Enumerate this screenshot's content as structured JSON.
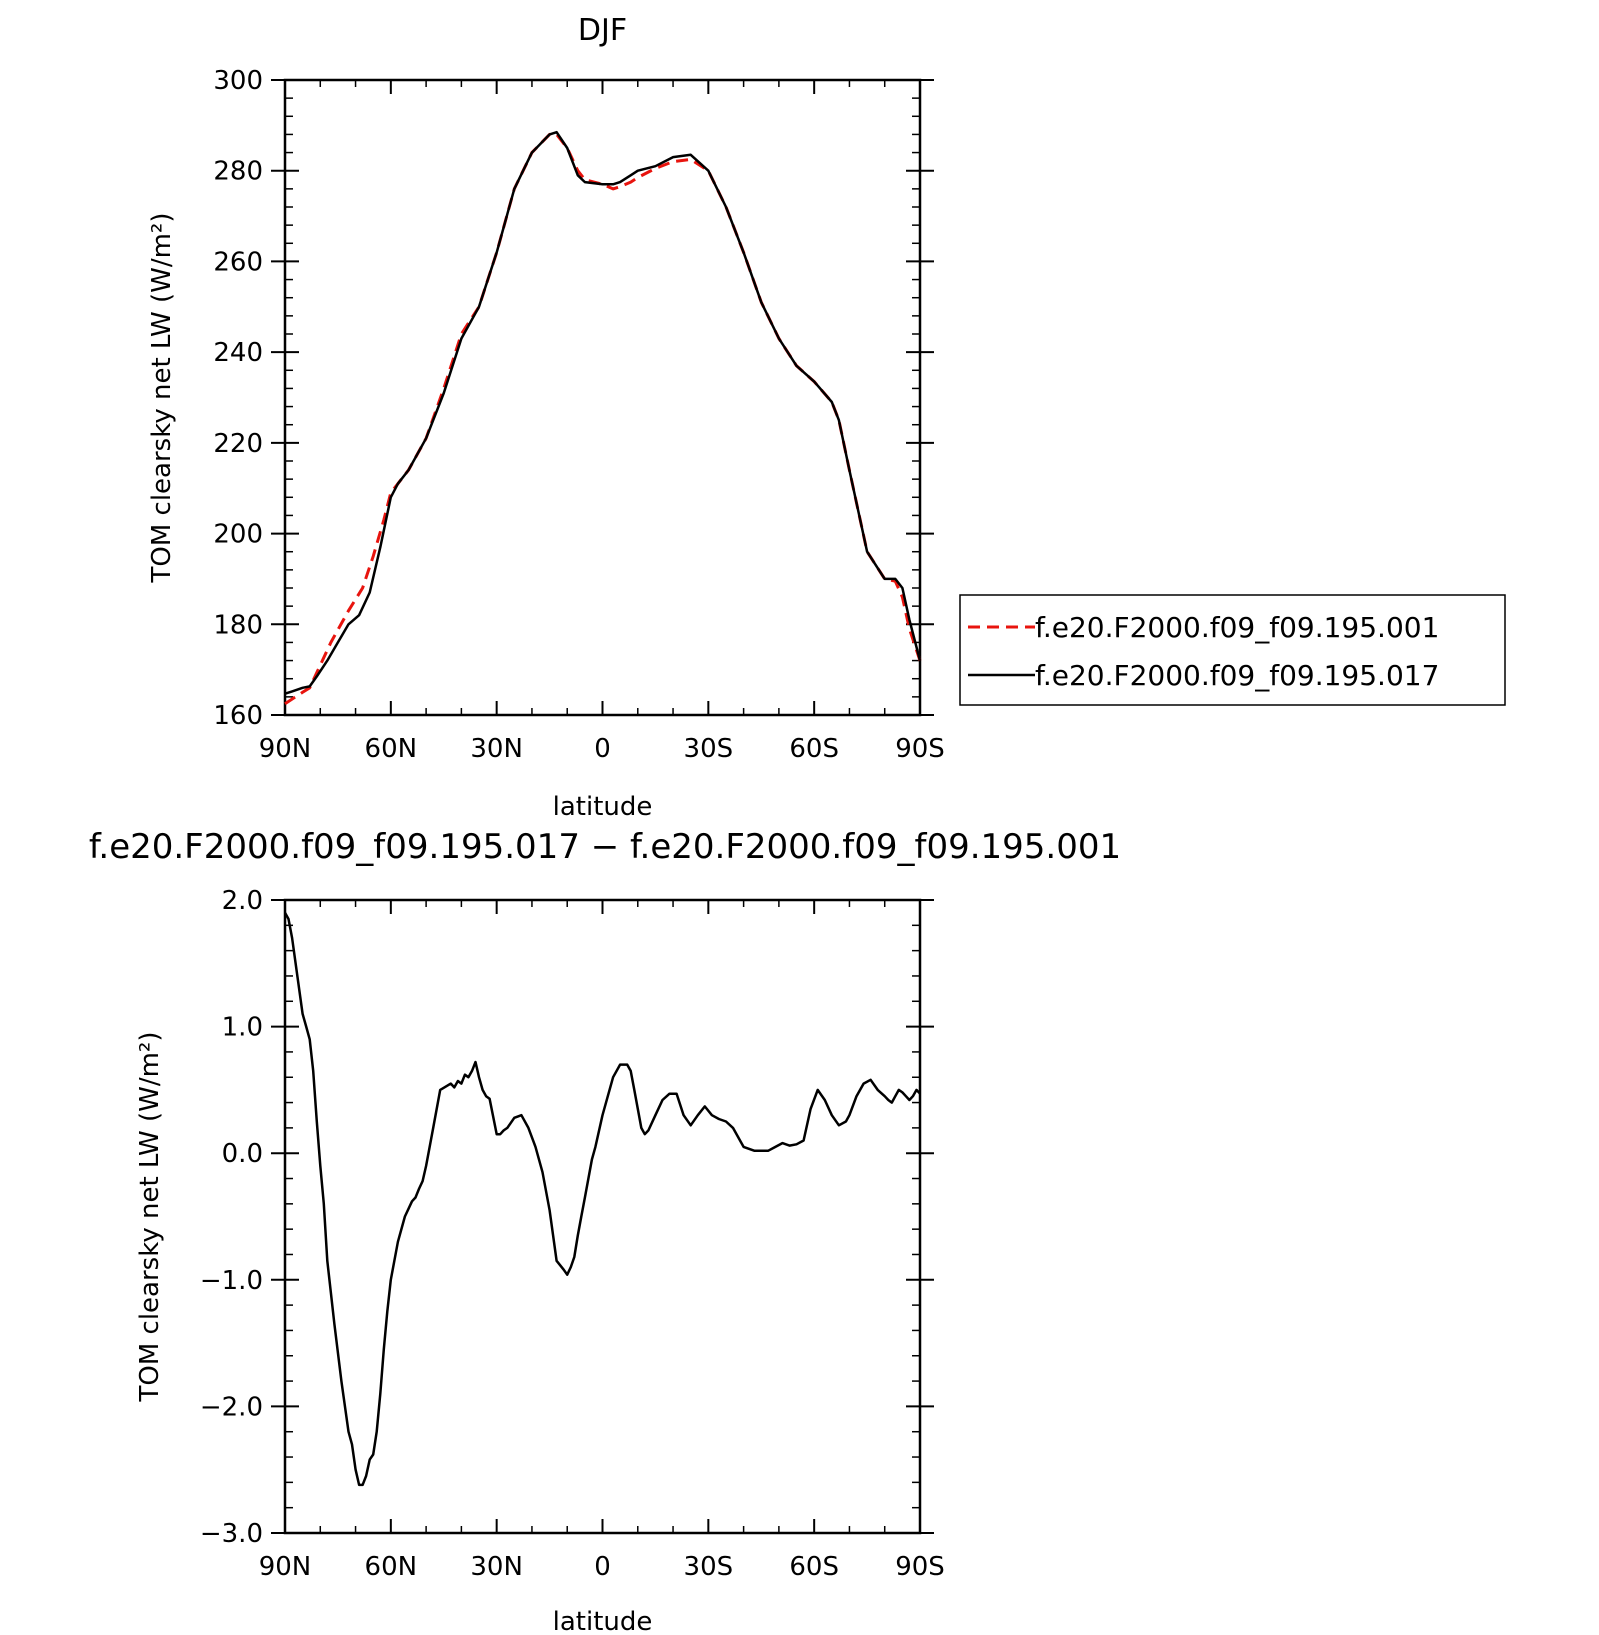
{
  "chart_data": [
    {
      "type": "line",
      "title": "DJF",
      "xlabel": "latitude",
      "ylabel": "TOM clearsky net LW (W/m²)",
      "ylim": [
        160,
        300
      ],
      "xlim": [
        -90,
        90
      ],
      "x_ticks": [
        {
          "value": -90,
          "label": "90N"
        },
        {
          "value": -60,
          "label": "60N"
        },
        {
          "value": -30,
          "label": "30N"
        },
        {
          "value": 0,
          "label": "0"
        },
        {
          "value": 30,
          "label": "30S"
        },
        {
          "value": 60,
          "label": "60S"
        },
        {
          "value": 90,
          "label": "90S"
        }
      ],
      "y_ticks": [
        {
          "value": 160,
          "label": "160"
        },
        {
          "value": 180,
          "label": "180"
        },
        {
          "value": 200,
          "label": "200"
        },
        {
          "value": 220,
          "label": "220"
        },
        {
          "value": 240,
          "label": "240"
        },
        {
          "value": 260,
          "label": "260"
        },
        {
          "value": 280,
          "label": "280"
        },
        {
          "value": 300,
          "label": "300"
        }
      ],
      "legend_position": "right",
      "series": [
        {
          "name": "f.e20.F2000.f09_f09.195.001",
          "color": "#e8140e",
          "style": "dashed",
          "x": [
            -90,
            -85,
            -83,
            -80,
            -77,
            -72,
            -68,
            -65,
            -62,
            -60,
            -58,
            -55,
            -50,
            -45,
            -40,
            -35,
            -30,
            -25,
            -20,
            -15,
            -13,
            -10,
            -7,
            -5,
            0,
            3,
            5,
            8,
            10,
            15,
            20,
            25,
            30,
            35,
            40,
            45,
            50,
            55,
            60,
            65,
            67,
            70,
            75,
            80,
            83,
            85,
            87,
            90
          ],
          "y": [
            162.5,
            165,
            166,
            171,
            176,
            183,
            188,
            195,
            203,
            209,
            211,
            214,
            221,
            232,
            244,
            250,
            262,
            276,
            284,
            288,
            288,
            285,
            280,
            278,
            277,
            276,
            276.5,
            277.5,
            278.5,
            280.5,
            282,
            282.5,
            280,
            272,
            262,
            251,
            243,
            237,
            233.5,
            229,
            225,
            214,
            196,
            190,
            189.5,
            186,
            179,
            172
          ]
        },
        {
          "name": "f.e20.F2000.f09_f09.195.017",
          "color": "#000000",
          "style": "solid",
          "x": [
            -90,
            -88,
            -85,
            -83,
            -81,
            -78,
            -75,
            -72,
            -69,
            -66,
            -63,
            -60,
            -58,
            -55,
            -50,
            -45,
            -40,
            -35,
            -30,
            -25,
            -20,
            -15,
            -13,
            -10,
            -7,
            -5,
            0,
            3,
            5,
            8,
            10,
            15,
            20,
            25,
            30,
            35,
            40,
            45,
            50,
            55,
            60,
            65,
            67,
            70,
            75,
            80,
            83,
            85,
            87,
            90
          ],
          "y": [
            164.7,
            165.2,
            166,
            166.3,
            168.5,
            172,
            176,
            180,
            182,
            187,
            197,
            208,
            211,
            214,
            221,
            231,
            243,
            250,
            262,
            276,
            284,
            288,
            288.5,
            285,
            279,
            277.5,
            277,
            277,
            277.5,
            279,
            280,
            281,
            283,
            283.5,
            280,
            272,
            262,
            251,
            243,
            237,
            233.5,
            229,
            225,
            214,
            196,
            190,
            190,
            188,
            181,
            172
          ]
        }
      ]
    },
    {
      "type": "line",
      "title": "f.e20.F2000.f09_f09.195.017 − f.e20.F2000.f09_f09.195.001",
      "xlabel": "latitude",
      "ylabel": "TOM clearsky net LW (W/m²)",
      "ylim": [
        -3.0,
        2.0
      ],
      "xlim": [
        -90,
        90
      ],
      "x_ticks": [
        {
          "value": -90,
          "label": "90N"
        },
        {
          "value": -60,
          "label": "60N"
        },
        {
          "value": -30,
          "label": "30N"
        },
        {
          "value": 0,
          "label": "0"
        },
        {
          "value": 30,
          "label": "30S"
        },
        {
          "value": 60,
          "label": "60S"
        },
        {
          "value": 90,
          "label": "90S"
        }
      ],
      "y_ticks": [
        {
          "value": 2.0,
          "label": "2.0"
        },
        {
          "value": 1.0,
          "label": "1.0"
        },
        {
          "value": 0.0,
          "label": "0.0"
        },
        {
          "value": -1.0,
          "label": "−1.0"
        },
        {
          "value": -2.0,
          "label": "−2.0"
        },
        {
          "value": -3.0,
          "label": "−3.0"
        }
      ],
      "series": [
        {
          "name": "",
          "color": "#000000",
          "style": "solid",
          "x": [
            -90,
            -89,
            -88,
            -87,
            -85,
            -84,
            -83,
            -82,
            -81,
            -80,
            -79,
            -78,
            -76,
            -74,
            -72,
            -71,
            -70,
            -69,
            -68,
            -67,
            -66,
            -65,
            -64,
            -63,
            -62,
            -61,
            -60,
            -58,
            -56,
            -54,
            -53,
            -52,
            -51,
            -50,
            -48,
            -46,
            -43,
            -42,
            -41,
            -40,
            -39,
            -38,
            -37,
            -36,
            -35,
            -34,
            -33,
            -32,
            -30,
            -29,
            -28,
            -27,
            -25,
            -23,
            -21,
            -19,
            -17,
            -15,
            -13,
            -11,
            -10,
            -9,
            -8,
            -7,
            -6,
            -5,
            -4,
            -3,
            -2,
            0,
            3,
            5,
            7,
            8,
            9,
            10,
            11,
            12,
            13,
            15,
            17,
            19,
            21,
            23,
            25,
            27,
            29,
            31,
            33,
            35,
            37,
            40,
            43,
            45,
            47,
            49,
            51,
            53,
            55,
            57,
            59,
            61,
            63,
            65,
            67,
            69,
            70,
            72,
            74,
            76,
            78,
            80,
            81,
            82,
            83,
            84,
            85,
            86,
            87,
            88,
            89,
            90
          ],
          "y": [
            1.9,
            1.85,
            1.7,
            1.5,
            1.1,
            1.0,
            0.9,
            0.65,
            0.25,
            -0.1,
            -0.4,
            -0.85,
            -1.35,
            -1.8,
            -2.2,
            -2.3,
            -2.5,
            -2.62,
            -2.62,
            -2.55,
            -2.42,
            -2.38,
            -2.2,
            -1.9,
            -1.55,
            -1.25,
            -1.0,
            -0.7,
            -0.5,
            -0.38,
            -0.35,
            -0.28,
            -0.22,
            -0.1,
            0.2,
            0.5,
            0.55,
            0.52,
            0.57,
            0.55,
            0.62,
            0.6,
            0.65,
            0.72,
            0.6,
            0.5,
            0.45,
            0.43,
            0.15,
            0.15,
            0.18,
            0.2,
            0.28,
            0.3,
            0.2,
            0.05,
            -0.15,
            -0.45,
            -0.85,
            -0.92,
            -0.96,
            -0.9,
            -0.82,
            -0.65,
            -0.5,
            -0.35,
            -0.2,
            -0.05,
            0.05,
            0.3,
            0.6,
            0.7,
            0.7,
            0.65,
            0.5,
            0.35,
            0.2,
            0.15,
            0.18,
            0.3,
            0.42,
            0.47,
            0.47,
            0.3,
            0.22,
            0.3,
            0.37,
            0.3,
            0.27,
            0.25,
            0.2,
            0.05,
            0.02,
            0.02,
            0.02,
            0.05,
            0.08,
            0.06,
            0.07,
            0.1,
            0.35,
            0.5,
            0.42,
            0.3,
            0.22,
            0.25,
            0.3,
            0.45,
            0.55,
            0.58,
            0.5,
            0.45,
            0.42,
            0.4,
            0.45,
            0.5,
            0.48,
            0.45,
            0.42,
            0.45,
            0.5,
            0.47
          ]
        }
      ]
    }
  ]
}
